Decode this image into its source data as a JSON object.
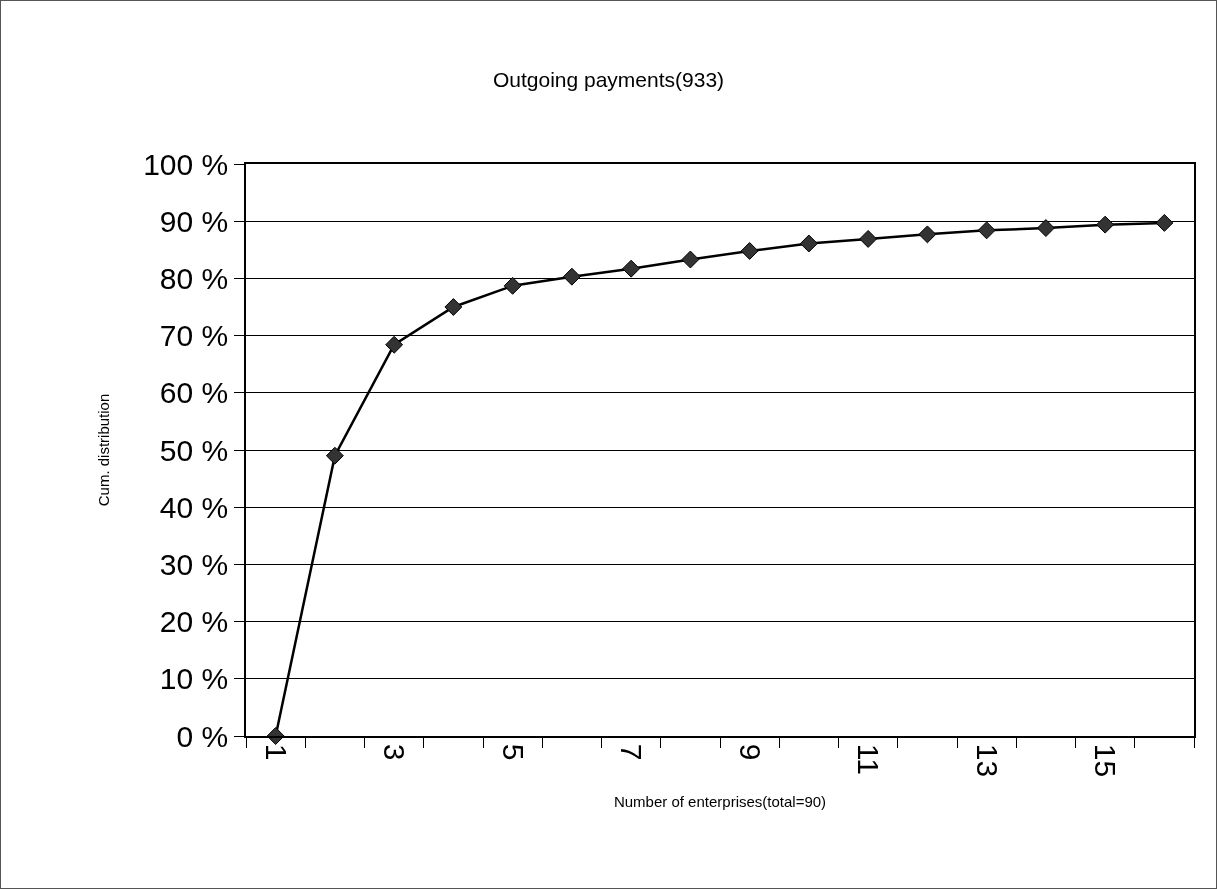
{
  "chart_data": {
    "type": "line",
    "title": "Outgoing payments(933)",
    "xlabel": "Number of enterprises(total=90)",
    "ylabel": "Cum. distribution",
    "categories": [
      "1",
      null,
      "3",
      null,
      "5",
      null,
      "7",
      null,
      "9",
      null,
      "11",
      null,
      "13",
      null,
      "15",
      null
    ],
    "series": [
      {
        "color": "#333333",
        "values": [
          0,
          49.0,
          68.4,
          75.0,
          78.7,
          80.3,
          81.7,
          83.3,
          84.8,
          86.1,
          86.9,
          87.7,
          88.4,
          88.8,
          89.4,
          89.7
        ]
      }
    ],
    "ylim": [
      0,
      100
    ],
    "yticks": [
      {
        "value": 0,
        "label": "0 %"
      },
      {
        "value": 10,
        "label": "10 %"
      },
      {
        "value": 20,
        "label": "20 %"
      },
      {
        "value": 30,
        "label": "30 %"
      },
      {
        "value": 40,
        "label": "40 %"
      },
      {
        "value": 50,
        "label": "50 %"
      },
      {
        "value": 60,
        "label": "60 %"
      },
      {
        "value": 70,
        "label": "70 %"
      },
      {
        "value": 80,
        "label": "80 %"
      },
      {
        "value": 90,
        "label": "90 %"
      },
      {
        "value": 100,
        "label": "100 %"
      }
    ],
    "grid": "y",
    "legend": false,
    "marker": "diamond",
    "line_style": "solid"
  }
}
